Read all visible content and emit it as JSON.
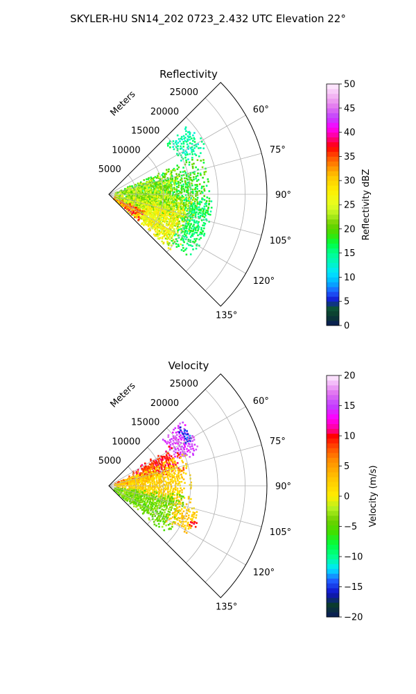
{
  "figure": {
    "suptitle": "SKYLER-HU  SN14_202  0723_2.432 UTC Elevation 22°"
  },
  "chart_data": [
    {
      "type": "heatmap",
      "projection": "polar-sector",
      "title": "Reflectivity",
      "radial_label": "Meters",
      "radial_ticks": [
        "5000",
        "10000",
        "15000",
        "20000",
        "25000"
      ],
      "radial_tick_values": [
        5000,
        10000,
        15000,
        20000,
        25000
      ],
      "radial_range": [
        0,
        29000
      ],
      "azimuth_range": [
        45,
        135
      ],
      "azimuth_ticks": [
        "60°",
        "75°",
        "90°",
        "105°",
        "120°",
        "135°"
      ],
      "azimuth_tick_values": [
        60,
        75,
        90,
        105,
        120,
        135
      ],
      "grid": true,
      "colorbar": {
        "label": "Reflectivity dBZ",
        "range": [
          0,
          50
        ],
        "ticks": [
          "0",
          "5",
          "10",
          "15",
          "20",
          "25",
          "30",
          "35",
          "40",
          "45",
          "50"
        ],
        "tick_values": [
          0,
          5,
          10,
          15,
          20,
          25,
          30,
          35,
          40,
          45,
          50
        ],
        "stops": [
          {
            "v": 0,
            "c": "#0a1a5a"
          },
          {
            "v": 2,
            "c": "#0b3b2e"
          },
          {
            "v": 4,
            "c": "#0e5a3a"
          },
          {
            "v": 5,
            "c": "#1010c8"
          },
          {
            "v": 7,
            "c": "#1f5cff"
          },
          {
            "v": 9,
            "c": "#00b4ff"
          },
          {
            "v": 11,
            "c": "#00e6ff"
          },
          {
            "v": 13,
            "c": "#00f5c0"
          },
          {
            "v": 15,
            "c": "#00ff90"
          },
          {
            "v": 17,
            "c": "#00ff40"
          },
          {
            "v": 19,
            "c": "#40e000"
          },
          {
            "v": 21,
            "c": "#6ed000"
          },
          {
            "v": 23,
            "c": "#b4f020"
          },
          {
            "v": 25,
            "c": "#e6ff20"
          },
          {
            "v": 28,
            "c": "#ffee00"
          },
          {
            "v": 31,
            "c": "#ffc400"
          },
          {
            "v": 33,
            "c": "#ff8c00"
          },
          {
            "v": 35,
            "c": "#ff5000"
          },
          {
            "v": 37,
            "c": "#ff0000"
          },
          {
            "v": 39,
            "c": "#ff0090"
          },
          {
            "v": 41,
            "c": "#ff00ff"
          },
          {
            "v": 43,
            "c": "#c040ff"
          },
          {
            "v": 45,
            "c": "#e070f0"
          },
          {
            "v": 47,
            "c": "#f0a8f0"
          },
          {
            "v": 50,
            "c": "#fff0ff"
          }
        ]
      },
      "echo_regions": [
        {
          "az": [
            48,
            66
          ],
          "r": [
            14000,
            19500
          ],
          "v": [
            12,
            17
          ]
        },
        {
          "az": [
            66,
            114
          ],
          "r": [
            3000,
            18500
          ],
          "v": [
            15,
            22
          ]
        },
        {
          "az": [
            68,
            112
          ],
          "r": [
            1000,
            13000
          ],
          "v": [
            19,
            26
          ]
        },
        {
          "az": [
            92,
            132
          ],
          "r": [
            1000,
            16000
          ],
          "v": [
            20,
            28
          ]
        },
        {
          "az": [
            100,
            132
          ],
          "r": [
            6000,
            14000
          ],
          "v": [
            24,
            30
          ]
        },
        {
          "az": [
            114,
            132
          ],
          "r": [
            1000,
            7000
          ],
          "v": [
            28,
            38
          ]
        },
        {
          "az": [
            92,
            128
          ],
          "r": [
            14000,
            19000
          ],
          "v": [
            14,
            18
          ]
        }
      ]
    },
    {
      "type": "heatmap",
      "projection": "polar-sector",
      "title": "Velocity",
      "radial_label": "Meters",
      "radial_ticks": [
        "5000",
        "10000",
        "15000",
        "20000",
        "25000"
      ],
      "radial_tick_values": [
        5000,
        10000,
        15000,
        20000,
        25000
      ],
      "radial_range": [
        0,
        29000
      ],
      "azimuth_range": [
        45,
        135
      ],
      "azimuth_ticks": [
        "60°",
        "75°",
        "90°",
        "105°",
        "120°",
        "135°"
      ],
      "azimuth_tick_values": [
        60,
        75,
        90,
        105,
        120,
        135
      ],
      "grid": true,
      "colorbar": {
        "label": "Velocity (m/s)",
        "range": [
          -20,
          20
        ],
        "ticks": [
          "−20",
          "−15",
          "−10",
          "−5",
          "0",
          "5",
          "10",
          "15",
          "20"
        ],
        "tick_values": [
          -20,
          -15,
          -10,
          -5,
          0,
          5,
          10,
          15,
          20
        ],
        "stops": [
          {
            "v": -20,
            "c": "#0a1a5a"
          },
          {
            "v": -18,
            "c": "#0b3b2e"
          },
          {
            "v": -16,
            "c": "#1010c8"
          },
          {
            "v": -14,
            "c": "#1f5cff"
          },
          {
            "v": -12,
            "c": "#00e6ff"
          },
          {
            "v": -10,
            "c": "#00ff90"
          },
          {
            "v": -8,
            "c": "#00ff40"
          },
          {
            "v": -6,
            "c": "#40e000"
          },
          {
            "v": -4,
            "c": "#6ed000"
          },
          {
            "v": -2,
            "c": "#b4f020"
          },
          {
            "v": 0,
            "c": "#ffee00"
          },
          {
            "v": 3,
            "c": "#ffc400"
          },
          {
            "v": 6,
            "c": "#ff8c00"
          },
          {
            "v": 8,
            "c": "#ff5000"
          },
          {
            "v": 10,
            "c": "#ff0000"
          },
          {
            "v": 11,
            "c": "#ff0090"
          },
          {
            "v": 13,
            "c": "#ff00ff"
          },
          {
            "v": 15,
            "c": "#c040ff"
          },
          {
            "v": 17,
            "c": "#e070f0"
          },
          {
            "v": 20,
            "c": "#fff0ff"
          }
        ]
      },
      "echo_regions": [
        {
          "az": [
            48,
            70
          ],
          "r": [
            13000,
            18000
          ],
          "v": [
            13,
            17
          ]
        },
        {
          "az": [
            50,
            62
          ],
          "r": [
            16000,
            17500
          ],
          "v": [
            -16,
            -13
          ]
        },
        {
          "az": [
            56,
            78
          ],
          "r": [
            5000,
            14000
          ],
          "v": [
            8,
            11
          ]
        },
        {
          "az": [
            62,
            84
          ],
          "r": [
            1000,
            9000
          ],
          "v": [
            5,
            9
          ]
        },
        {
          "az": [
            66,
            108
          ],
          "r": [
            1000,
            15000
          ],
          "v": [
            0,
            4
          ]
        },
        {
          "az": [
            96,
            130
          ],
          "r": [
            1000,
            14000
          ],
          "v": [
            -6,
            -2
          ]
        },
        {
          "az": [
            104,
            122
          ],
          "r": [
            12000,
            17000
          ],
          "v": [
            1,
            4
          ]
        },
        {
          "az": [
            112,
            116
          ],
          "r": [
            16000,
            17500
          ],
          "v": [
            9,
            12
          ]
        }
      ]
    }
  ]
}
